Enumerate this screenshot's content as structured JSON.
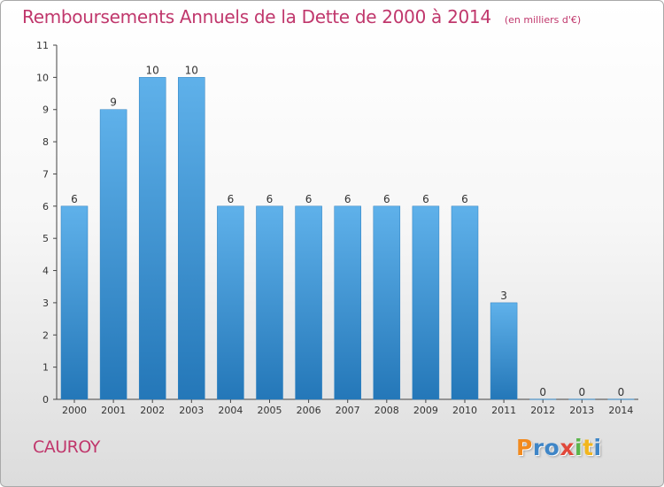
{
  "title": "Remboursements Annuels de la Dette de 2000 à 2014",
  "units": "(en milliers d'€)",
  "commune": "CAUROY",
  "logo": {
    "letters": [
      "P",
      "r",
      "o",
      "x",
      "i",
      "t",
      "i"
    ],
    "colors": [
      "#f28a1e",
      "#3f86c7",
      "#3f86c7",
      "#e1483a",
      "#5ab54a",
      "#f2b61e",
      "#3f86c7"
    ]
  },
  "colors": {
    "title": "#c0376c",
    "bar_top": "#5fb1ea",
    "bar_bottom": "#2477b8",
    "axis": "#333333"
  },
  "chart_data": {
    "type": "bar",
    "categories": [
      "2000",
      "2001",
      "2002",
      "2003",
      "2004",
      "2005",
      "2006",
      "2007",
      "2008",
      "2009",
      "2010",
      "2011",
      "2012",
      "2013",
      "2014"
    ],
    "values": [
      6,
      9,
      10,
      10,
      6,
      6,
      6,
      6,
      6,
      6,
      6,
      3,
      0,
      0,
      0
    ],
    "data_labels": [
      "6",
      "9",
      "10",
      "10",
      "6",
      "6",
      "6",
      "6",
      "6",
      "6",
      "6",
      "3",
      "0",
      "0",
      "0"
    ],
    "yticks": [
      0,
      1,
      2,
      3,
      4,
      5,
      6,
      7,
      8,
      9,
      10,
      11
    ],
    "ylim": [
      0,
      11
    ],
    "grid": false,
    "legend": "none"
  }
}
